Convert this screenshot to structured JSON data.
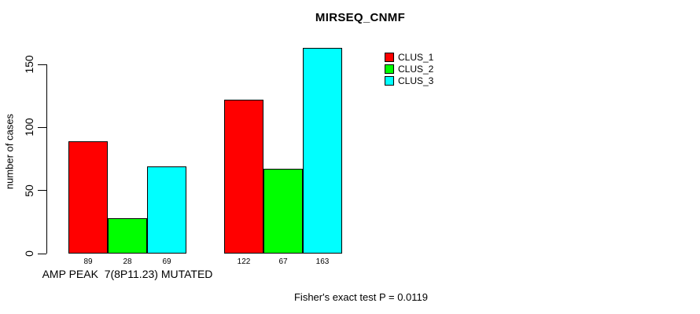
{
  "chart_data": {
    "type": "bar",
    "title": "MIRSEQ_CNMF",
    "ylabel": "number of cases",
    "xlabel": "",
    "subtitle": "Fisher's exact test P = 0.0119",
    "categories": [
      "AMP PEAK  7(8P11.23) MUTATED",
      ""
    ],
    "series": [
      {
        "name": "CLUS_1",
        "color": "#ff0000",
        "values": [
          89,
          122
        ]
      },
      {
        "name": "CLUS_2",
        "color": "#00ff00",
        "values": [
          28,
          67
        ]
      },
      {
        "name": "CLUS_3",
        "color": "#00ffff",
        "values": [
          69,
          163
        ]
      }
    ],
    "yticks": [
      0,
      50,
      100,
      150
    ],
    "ylim": [
      0,
      163
    ],
    "grid": false,
    "legend_position": "top-right",
    "bar_value_labels": [
      [
        89,
        28,
        69
      ],
      [
        122,
        67,
        163
      ]
    ]
  }
}
